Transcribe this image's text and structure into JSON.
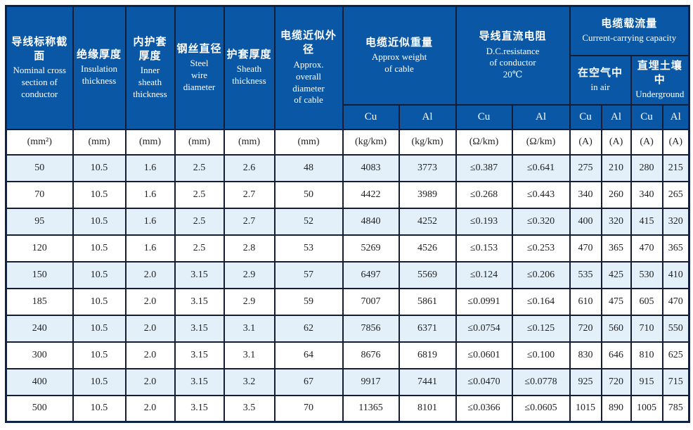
{
  "header": {
    "cols": [
      {
        "zh": "导线标称截面",
        "en": "Nominal cross\nsection of\nconductor"
      },
      {
        "zh": "绝缘厚度",
        "en": "Insulation\nthickness"
      },
      {
        "zh": "内护套\n厚度",
        "en": "Inner\nsheath\nthickness"
      },
      {
        "zh": "钢丝直径",
        "en": "Steel\nwire\ndiameter"
      },
      {
        "zh": "护套厚度",
        "en": "Sheath\nthickness"
      },
      {
        "zh": "电缆近似外径",
        "en": "Approx.\noverall\ndiameter\nof cable"
      }
    ],
    "groups": {
      "weight": {
        "zh": "电缆近似重量",
        "en": "Approx weight\nof cable"
      },
      "resistance": {
        "zh": "导线直流电阻",
        "en": "D.C.resistance\nof conductor\n20℃"
      },
      "capacity": {
        "zh": "电缆载流量",
        "en": "Current-carrying capacity"
      },
      "air": {
        "zh": "在空气中",
        "en": "in air"
      },
      "underground": {
        "zh": "直埋土壤中",
        "en": "Underground"
      }
    },
    "materials": [
      "Cu",
      "Al",
      "Cu",
      "Al",
      "Cu",
      "Al",
      "Cu",
      "Al"
    ]
  },
  "units": [
    "(mm²)",
    "(mm)",
    "(mm)",
    "(mm)",
    "(mm)",
    "(mm)",
    "(kg/km)",
    "(kg/km)",
    "(Ω/km)",
    "(Ω/km)",
    "(A)",
    "(A)",
    "(A)",
    "(A)"
  ],
  "rows": [
    [
      "50",
      "10.5",
      "1.6",
      "2.5",
      "2.6",
      "48",
      "4083",
      "3773",
      "≤0.387",
      "≤0.641",
      "275",
      "210",
      "280",
      "215"
    ],
    [
      "70",
      "10.5",
      "1.6",
      "2.5",
      "2.7",
      "50",
      "4422",
      "3989",
      "≤0.268",
      "≤0.443",
      "340",
      "260",
      "340",
      "265"
    ],
    [
      "95",
      "10.5",
      "1.6",
      "2.5",
      "2.7",
      "52",
      "4840",
      "4252",
      "≤0.193",
      "≤0.320",
      "400",
      "320",
      "415",
      "320"
    ],
    [
      "120",
      "10.5",
      "1.6",
      "2.5",
      "2.8",
      "53",
      "5269",
      "4526",
      "≤0.153",
      "≤0.253",
      "470",
      "365",
      "470",
      "365"
    ],
    [
      "150",
      "10.5",
      "2.0",
      "3.15",
      "2.9",
      "57",
      "6497",
      "5569",
      "≤0.124",
      "≤0.206",
      "535",
      "425",
      "530",
      "410"
    ],
    [
      "185",
      "10.5",
      "2.0",
      "3.15",
      "2.9",
      "59",
      "7007",
      "5861",
      "≤0.0991",
      "≤0.164",
      "610",
      "475",
      "605",
      "470"
    ],
    [
      "240",
      "10.5",
      "2.0",
      "3.15",
      "3.1",
      "62",
      "7856",
      "6371",
      "≤0.0754",
      "≤0.125",
      "720",
      "560",
      "710",
      "550"
    ],
    [
      "300",
      "10.5",
      "2.0",
      "3.15",
      "3.1",
      "64",
      "8676",
      "6819",
      "≤0.0601",
      "≤0.100",
      "830",
      "646",
      "810",
      "625"
    ],
    [
      "400",
      "10.5",
      "2.0",
      "3.15",
      "3.2",
      "67",
      "9917",
      "7441",
      "≤0.0470",
      "≤0.0778",
      "925",
      "720",
      "915",
      "715"
    ],
    [
      "500",
      "10.5",
      "2.0",
      "3.15",
      "3.5",
      "70",
      "11365",
      "8101",
      "≤0.0366",
      "≤0.0605",
      "1015",
      "890",
      "1005",
      "785"
    ]
  ],
  "colors": {
    "header_bg": "#0a57a5",
    "header_text": "#ffffff",
    "row_alt_bg": "#e4f0f9",
    "grid": "#141d33",
    "outer_border": "#0e2347",
    "body_text": "#222222"
  }
}
